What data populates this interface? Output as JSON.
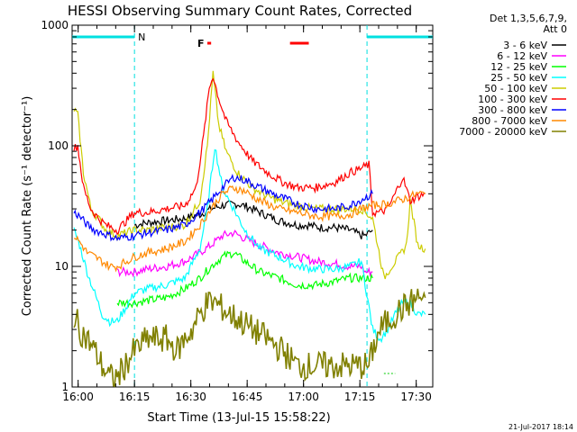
{
  "chart_data": {
    "type": "line",
    "title": "HESSI Observing Summary Count Rates, Corrected",
    "xlabel": "Start Time (13-Jul-15 15:58:22)",
    "ylabel": "Corrected Count Rate (s⁻¹ detector⁻¹)",
    "y_scale": "log",
    "ylim": [
      1,
      1000
    ],
    "xlim_min_after_start": [
      0,
      96
    ],
    "x_ticks": [
      "16:00",
      "16:15",
      "16:30",
      "16:45",
      "17:00",
      "17:15",
      "17:30"
    ],
    "x_tick_minutes": [
      1.6,
      16.6,
      31.6,
      46.6,
      61.6,
      76.6,
      91.6
    ],
    "y_ticks": [
      "1",
      "10",
      "100",
      "1000"
    ],
    "y_tick_values": [
      1,
      10,
      100,
      1000
    ],
    "legend_header": [
      "Det 1,3,5,6,7,9,",
      "Att 0"
    ],
    "legend_position": "right",
    "annotations": {
      "night_label": "N",
      "flare_label": "F",
      "footer": "21-Jul-2017 18:14"
    },
    "series": [
      {
        "name": "3 - 6 keV",
        "color": "#000000",
        "x": [
          16.6,
          20,
          25,
          30,
          34,
          37,
          40,
          44,
          47,
          50,
          55,
          60,
          63,
          66,
          70,
          74,
          77,
          78,
          80
        ],
        "y": [
          22,
          23,
          24,
          25,
          27,
          30,
          32,
          33,
          31,
          28,
          24,
          22,
          22,
          21,
          21,
          20,
          18,
          18,
          20
        ]
      },
      {
        "name": "6 - 12 keV",
        "color": "#ff00ff",
        "x": [
          12,
          16.6,
          20,
          25,
          30,
          34,
          37,
          40,
          43,
          46,
          50,
          55,
          60,
          65,
          70,
          74,
          77,
          78,
          80
        ],
        "y": [
          9,
          9,
          9.5,
          10,
          11,
          13,
          15,
          18,
          19,
          17,
          15,
          13,
          12,
          11,
          10.5,
          10,
          10,
          9,
          9
        ]
      },
      {
        "name": "12 - 25 keV",
        "color": "#00ff00",
        "x": [
          12,
          16.6,
          20,
          25,
          30,
          34,
          37,
          40,
          43,
          46,
          50,
          55,
          60,
          65,
          70,
          74,
          77,
          78,
          80
        ],
        "y": [
          5,
          5,
          5.2,
          5.5,
          6.5,
          8,
          10,
          12,
          13,
          11,
          9,
          8,
          7,
          7,
          7.5,
          8,
          8,
          8,
          8
        ]
      },
      {
        "name": "25 - 50 keV",
        "color": "#00ffff",
        "x": [
          0.5,
          2,
          4,
          6,
          8,
          10,
          12,
          16.6,
          20,
          25,
          30,
          34,
          36,
          38,
          40,
          43,
          46,
          50,
          55,
          60,
          65,
          70,
          74,
          77,
          80,
          82,
          84,
          86,
          88,
          90,
          92,
          94
        ],
        "y": [
          20,
          15,
          9,
          6,
          4,
          3.5,
          3.5,
          6,
          6.5,
          7,
          8,
          14,
          30,
          100,
          45,
          30,
          20,
          14,
          12,
          10,
          9.5,
          9.5,
          10,
          11,
          3,
          2.5,
          3,
          4,
          5,
          5,
          4,
          4
        ]
      },
      {
        "name": "50 - 100 keV",
        "color": "#cccc00",
        "x": [
          0.5,
          1.5,
          3,
          5,
          7,
          9,
          12,
          16.6,
          20,
          25,
          30,
          34,
          36,
          37.5,
          39,
          41,
          44,
          48,
          52,
          56,
          60,
          64,
          68,
          72,
          75,
          77,
          80,
          83,
          85,
          87,
          89,
          90,
          92,
          94
        ],
        "y": [
          200,
          180,
          60,
          30,
          25,
          20,
          18,
          20,
          20,
          21,
          22,
          35,
          100,
          400,
          150,
          90,
          60,
          45,
          38,
          34,
          32,
          30,
          30,
          30,
          30,
          30,
          25,
          8,
          10,
          12,
          15,
          35,
          15,
          14
        ]
      },
      {
        "name": "100 - 300 keV",
        "color": "#ff0000",
        "x": [
          0.5,
          1.5,
          3,
          5,
          7,
          9,
          12,
          16.6,
          20,
          25,
          30,
          33,
          35,
          36.5,
          37.5,
          39,
          41,
          44,
          48,
          52,
          56,
          60,
          65,
          70,
          74,
          77,
          79,
          80,
          82,
          84,
          86,
          88,
          90,
          92,
          94
        ],
        "y": [
          95,
          100,
          45,
          30,
          25,
          22,
          20,
          28,
          28,
          30,
          32,
          45,
          120,
          300,
          380,
          250,
          160,
          110,
          75,
          60,
          50,
          45,
          45,
          50,
          60,
          65,
          70,
          28,
          28,
          30,
          40,
          55,
          35,
          38,
          40
        ]
      },
      {
        "name": "300 - 800 keV",
        "color": "#0000ff",
        "x": [
          0.5,
          2,
          4,
          6,
          8,
          10,
          12,
          16.6,
          20,
          25,
          30,
          34,
          37,
          40,
          43,
          46,
          50,
          55,
          60,
          65,
          70,
          74,
          77,
          80
        ],
        "y": [
          28,
          26,
          22,
          20,
          19,
          18,
          17,
          18,
          19,
          20,
          22,
          28,
          35,
          45,
          55,
          52,
          45,
          38,
          33,
          30,
          30,
          32,
          36,
          40
        ]
      },
      {
        "name": "800 - 7000 keV",
        "color": "#ff8800",
        "x": [
          0.5,
          2,
          4,
          6,
          8,
          10,
          12,
          16.6,
          20,
          25,
          30,
          34,
          37,
          40,
          43,
          46,
          50,
          55,
          60,
          65,
          70,
          74,
          77,
          80,
          84,
          88,
          92,
          94
        ],
        "y": [
          18,
          16,
          13,
          12,
          11,
          10,
          10,
          12,
          13,
          14,
          16,
          22,
          30,
          40,
          45,
          42,
          35,
          30,
          28,
          26,
          26,
          27,
          30,
          32,
          33,
          36,
          40,
          40
        ]
      },
      {
        "name": "7000 - 20000 keV",
        "color": "#808000",
        "x": [
          0.5,
          2,
          4,
          6,
          8,
          10,
          12,
          16.6,
          20,
          25,
          28,
          30,
          32,
          34,
          36,
          38,
          40,
          42,
          45,
          48,
          52,
          56,
          60,
          64,
          68,
          72,
          75,
          77,
          79,
          80,
          82,
          84,
          86,
          88,
          90,
          92,
          94
        ],
        "y": [
          4,
          3,
          2.5,
          2,
          1.5,
          1.2,
          1.2,
          2,
          2.5,
          2.5,
          2,
          2.5,
          3,
          4,
          5,
          5,
          4.5,
          4,
          3.5,
          3,
          2.5,
          2,
          1.5,
          1.5,
          1.5,
          1.5,
          1.5,
          1.5,
          1.5,
          2,
          3,
          3.5,
          4,
          4.5,
          5,
          5.5,
          5.5
        ]
      }
    ],
    "night_intervals_min": [
      [
        0,
        16.6
      ],
      [
        78.5,
        96
      ]
    ],
    "flare_intervals_min": [
      [
        36,
        37
      ],
      [
        58,
        63
      ]
    ],
    "attenuator_intervals_min": [
      [
        83,
        86
      ]
    ]
  }
}
